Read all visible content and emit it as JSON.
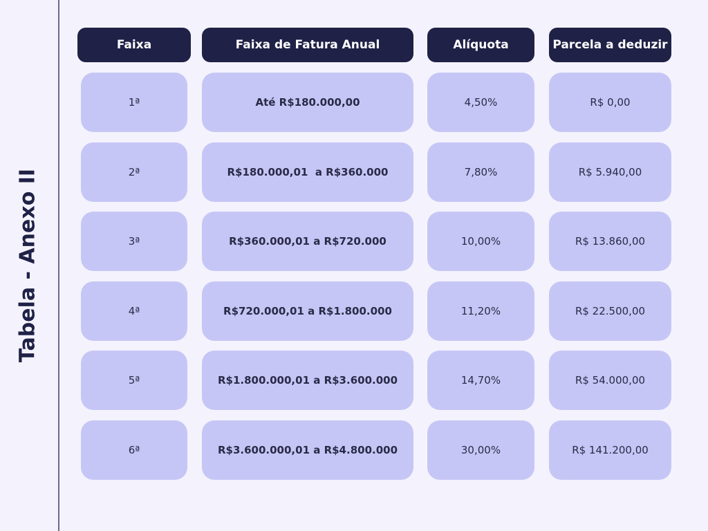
{
  "title": "Tabela - Anexo II",
  "table": {
    "headers": [
      "Faixa",
      "Faixa de Fatura Anual",
      "Alíquota",
      "Parcela a deduzir"
    ],
    "rows": [
      [
        "1ª",
        "Até R$180.000,00",
        "4,50%",
        "R$ 0,00"
      ],
      [
        "2ª",
        "R$180.000,01  a R$360.000",
        "7,80%",
        "R$ 5.940,00"
      ],
      [
        "3ª",
        "R$360.000,01 a R$720.000",
        "10,00%",
        "R$ 13.860,00"
      ],
      [
        "4ª",
        "R$720.000,01 a R$1.800.000",
        "11,20%",
        "R$ 22.500,00"
      ],
      [
        "5ª",
        "R$1.800.000,01 a R$3.600.000",
        "14,70%",
        "R$ 54.000,00"
      ],
      [
        "6ª",
        "R$3.600.000,01 a R$4.800.000",
        "30,00%",
        "R$ 141.200,00"
      ]
    ]
  }
}
